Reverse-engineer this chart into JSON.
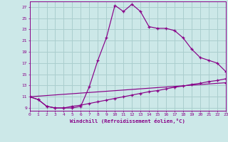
{
  "xlabel": "Windchill (Refroidissement éolien,°C)",
  "xlim": [
    0,
    23
  ],
  "ylim": [
    8.5,
    28
  ],
  "xticks": [
    0,
    1,
    2,
    3,
    4,
    5,
    6,
    7,
    8,
    9,
    10,
    11,
    12,
    13,
    14,
    15,
    16,
    17,
    18,
    19,
    20,
    21,
    22,
    23
  ],
  "yticks": [
    9,
    11,
    13,
    15,
    17,
    19,
    21,
    23,
    25,
    27
  ],
  "background_color": "#cce8e8",
  "grid_color": "#aacece",
  "line_color": "#880088",
  "line1_x": [
    0,
    1,
    2,
    3,
    4,
    5,
    6,
    7,
    8,
    9,
    10,
    11,
    12,
    13,
    14,
    15,
    16,
    17,
    18,
    19,
    20,
    21,
    22,
    23
  ],
  "line1_y": [
    11,
    10.5,
    9.3,
    9.0,
    9.0,
    9.0,
    9.3,
    12.8,
    17.5,
    21.5,
    27.3,
    26.2,
    27.5,
    26.2,
    23.5,
    23.2,
    23.2,
    22.8,
    21.5,
    19.5,
    18.0,
    17.5,
    17.0,
    15.5
  ],
  "line2_x": [
    0,
    1,
    2,
    3,
    4,
    5,
    6,
    7,
    8,
    9,
    10,
    11,
    12,
    13,
    14,
    15,
    16,
    17,
    18,
    19,
    20,
    21,
    22,
    23
  ],
  "line2_y": [
    11,
    10.5,
    9.3,
    9.0,
    9.0,
    9.3,
    9.5,
    9.8,
    10.1,
    10.4,
    10.7,
    11.0,
    11.3,
    11.6,
    11.9,
    12.1,
    12.4,
    12.7,
    12.9,
    13.2,
    13.4,
    13.7,
    13.9,
    14.2
  ],
  "line3_x": [
    0,
    23
  ],
  "line3_y": [
    11,
    13.5
  ]
}
